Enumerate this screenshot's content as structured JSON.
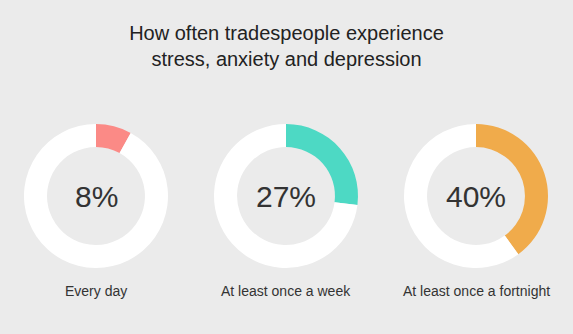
{
  "chart_data": {
    "type": "pie",
    "title": "How often tradespeople experience stress, anxiety and depression",
    "categories": [
      "Every day",
      "At least once a week",
      "At least once a fortnight"
    ],
    "values": [
      8,
      27,
      40
    ],
    "value_labels": [
      "8%",
      "27%",
      "40%"
    ],
    "colors": [
      "#fb8a86",
      "#4dd9c4",
      "#f0ab4b"
    ],
    "ylim": [
      0,
      100
    ],
    "data_labels": true
  }
}
